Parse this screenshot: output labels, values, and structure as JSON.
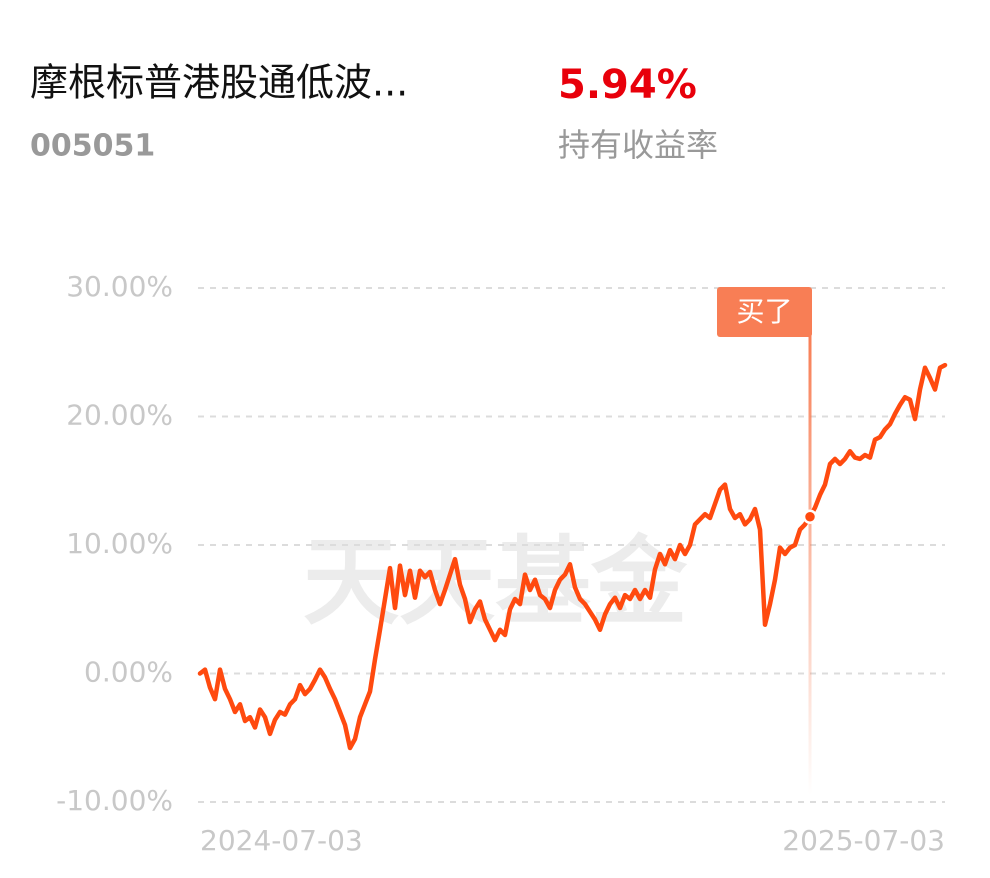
{
  "header": {
    "title": "摩根标普港股通低波...",
    "code": "005051",
    "return": "5.94%",
    "return_label": "持有收益率"
  },
  "chart_data": {
    "type": "line",
    "watermark": "天天基金",
    "categories": [
      "2024-07-03",
      null,
      null,
      null,
      null,
      null,
      null,
      null,
      null,
      null,
      null,
      null,
      null,
      null,
      null,
      null,
      null,
      null,
      null,
      null,
      null,
      null,
      null,
      null,
      null,
      null,
      null,
      null,
      null,
      null,
      null,
      null,
      null,
      null,
      null,
      null,
      null,
      null,
      null,
      null,
      null,
      null,
      null,
      null,
      null,
      null,
      null,
      null,
      null,
      null,
      null,
      null,
      null,
      null,
      null,
      null,
      null,
      null,
      null,
      null,
      null,
      null,
      null,
      null,
      null,
      null,
      null,
      null,
      null,
      null,
      null,
      null,
      null,
      null,
      null,
      null,
      null,
      null,
      null,
      null,
      null,
      null,
      null,
      null,
      null,
      null,
      null,
      null,
      null,
      null,
      null,
      null,
      null,
      null,
      null,
      null,
      null,
      null,
      null,
      null,
      null,
      null,
      null,
      null,
      null,
      null,
      null,
      null,
      null,
      null,
      null,
      null,
      null,
      null,
      null,
      null,
      null,
      null,
      null,
      null,
      null,
      null,
      null,
      null,
      null,
      null,
      null,
      null,
      null,
      null,
      null,
      null,
      null,
      null,
      null,
      null,
      null,
      null,
      null,
      null,
      null,
      null,
      null,
      null,
      null,
      null,
      null,
      null,
      null,
      "2025-07-03"
    ],
    "series": [
      {
        "name": "持有收益率",
        "color": "#ff4a0f",
        "values": [
          0,
          0.3,
          -1.1,
          -2.0,
          0.3,
          -1.2,
          -2.0,
          -3.0,
          -2.4,
          -3.7,
          -3.4,
          -4.2,
          -2.8,
          -3.4,
          -4.7,
          -3.6,
          -3.0,
          -3.2,
          -2.4,
          -2.0,
          -0.9,
          -1.6,
          -1.2,
          -0.5,
          0.3,
          -0.3,
          -1.2,
          -2.0,
          -3.0,
          -4.0,
          -5.8,
          -5.1,
          -3.4,
          -2.4,
          -1.4,
          1.1,
          3.4,
          5.8,
          8.2,
          5.1,
          8.4,
          6.1,
          8.0,
          5.9,
          8.0,
          7.5,
          7.9,
          6.5,
          5.4,
          6.5,
          7.7,
          8.9,
          6.9,
          5.8,
          4.0,
          5.0,
          5.6,
          4.2,
          3.4,
          2.6,
          3.4,
          3.0,
          5.0,
          5.8,
          5.4,
          7.7,
          6.5,
          7.3,
          6.1,
          5.8,
          5.1,
          6.5,
          7.3,
          7.7,
          8.5,
          6.7,
          5.8,
          5.4,
          4.8,
          4.2,
          3.4,
          4.6,
          5.4,
          5.9,
          5.1,
          6.1,
          5.8,
          6.5,
          5.8,
          6.5,
          5.9,
          8.1,
          9.3,
          8.5,
          9.6,
          8.9,
          10.0,
          9.3,
          10.0,
          11.6,
          12.0,
          12.4,
          12.1,
          13.2,
          14.3,
          14.7,
          12.8,
          12.1,
          12.4,
          11.6,
          12.0,
          12.8,
          11.2,
          3.8,
          5.4,
          7.3,
          9.8,
          9.3,
          9.8,
          10.0,
          11.2,
          11.6,
          12.2,
          12.9,
          13.9,
          14.7,
          16.3,
          16.7,
          16.3,
          16.7,
          17.3,
          16.8,
          16.7,
          17.0,
          16.8,
          18.2,
          18.4,
          19.0,
          19.4,
          20.2,
          20.9,
          21.5,
          21.3,
          19.8,
          22.1,
          23.8,
          23.0,
          22.1,
          23.8,
          24.0
        ]
      }
    ],
    "annotation": {
      "text": "买了",
      "index": 122
    },
    "ylim": [
      -10,
      30
    ],
    "yticks": [
      {
        "value": -10,
        "label": "-10.00%"
      },
      {
        "value": 0,
        "label": "0.00%"
      },
      {
        "value": 10,
        "label": "10.00%"
      },
      {
        "value": 20,
        "label": "20.00%"
      },
      {
        "value": 30,
        "label": "30.00%"
      }
    ],
    "grid": true
  }
}
